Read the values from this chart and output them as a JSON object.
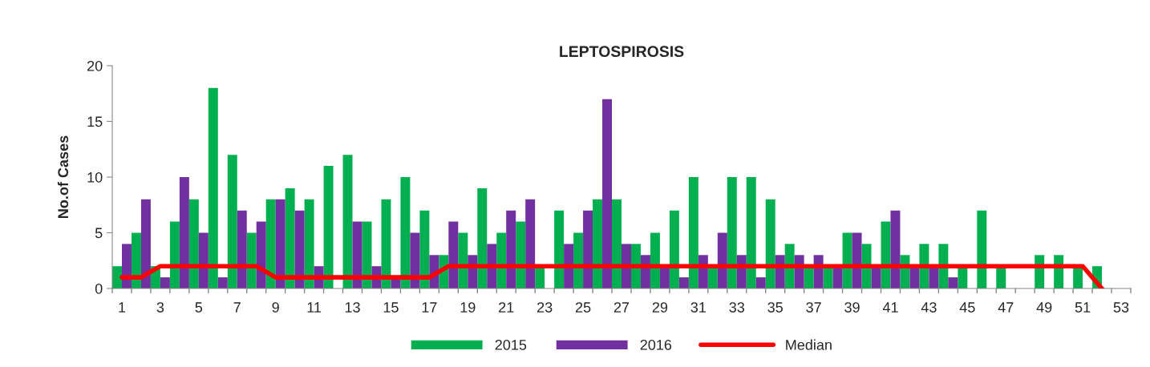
{
  "chart_data": {
    "type": "bar",
    "title": "LEPTOSPIROSIS",
    "ylabel": "No.of Cases",
    "categories": [
      "1",
      null,
      "3",
      null,
      "5",
      null,
      "7",
      null,
      "9",
      null,
      "11",
      null,
      "13",
      null,
      "15",
      null,
      "17",
      null,
      "19",
      null,
      "21",
      null,
      "23",
      null,
      "25",
      null,
      "27",
      null,
      "29",
      null,
      "31",
      null,
      "33",
      null,
      "35",
      null,
      "37",
      null,
      "39",
      null,
      "41",
      null,
      "43",
      null,
      "45",
      null,
      "47",
      null,
      "49",
      null,
      "51",
      null,
      "53"
    ],
    "series": [
      {
        "name": "2015",
        "color": "#00b050",
        "values": [
          2,
          5,
          2,
          6,
          8,
          18,
          12,
          5,
          8,
          9,
          8,
          11,
          12,
          6,
          8,
          10,
          7,
          3,
          5,
          9,
          5,
          6,
          2,
          7,
          5,
          8,
          8,
          4,
          5,
          7,
          10,
          2,
          10,
          10,
          8,
          4,
          2,
          2,
          5,
          4,
          6,
          3,
          4,
          4,
          2,
          7,
          2,
          0,
          3,
          3,
          2,
          2,
          null
        ]
      },
      {
        "name": "2016",
        "color": "#7030a0",
        "values": [
          4,
          8,
          1,
          10,
          5,
          1,
          7,
          6,
          8,
          7,
          2,
          0,
          6,
          2,
          1,
          5,
          3,
          6,
          3,
          4,
          7,
          8,
          0,
          4,
          7,
          17,
          4,
          3,
          2,
          1,
          3,
          5,
          3,
          1,
          3,
          3,
          3,
          2,
          5,
          2,
          7,
          2,
          2,
          1,
          null,
          null,
          null,
          null,
          null,
          null,
          null,
          null,
          null
        ]
      },
      {
        "name": "Median",
        "type": "line",
        "color": "#ff0000",
        "values": [
          1,
          1,
          2,
          2,
          2,
          2,
          2,
          2,
          1,
          1,
          1,
          1,
          1,
          1,
          1,
          1,
          1,
          2,
          2,
          2,
          2,
          2,
          2,
          2,
          2,
          2,
          2,
          2,
          2,
          2,
          2,
          2,
          2,
          2,
          2,
          2,
          2,
          2,
          2,
          2,
          2,
          2,
          2,
          2,
          2,
          2,
          2,
          2,
          2,
          2,
          2,
          0,
          null
        ]
      }
    ],
    "ylim": [
      0,
      20
    ],
    "yticks": [
      0,
      5,
      10,
      15,
      20
    ],
    "grid": false,
    "legend": "bottom",
    "marker": "none",
    "line_style": "solid"
  }
}
